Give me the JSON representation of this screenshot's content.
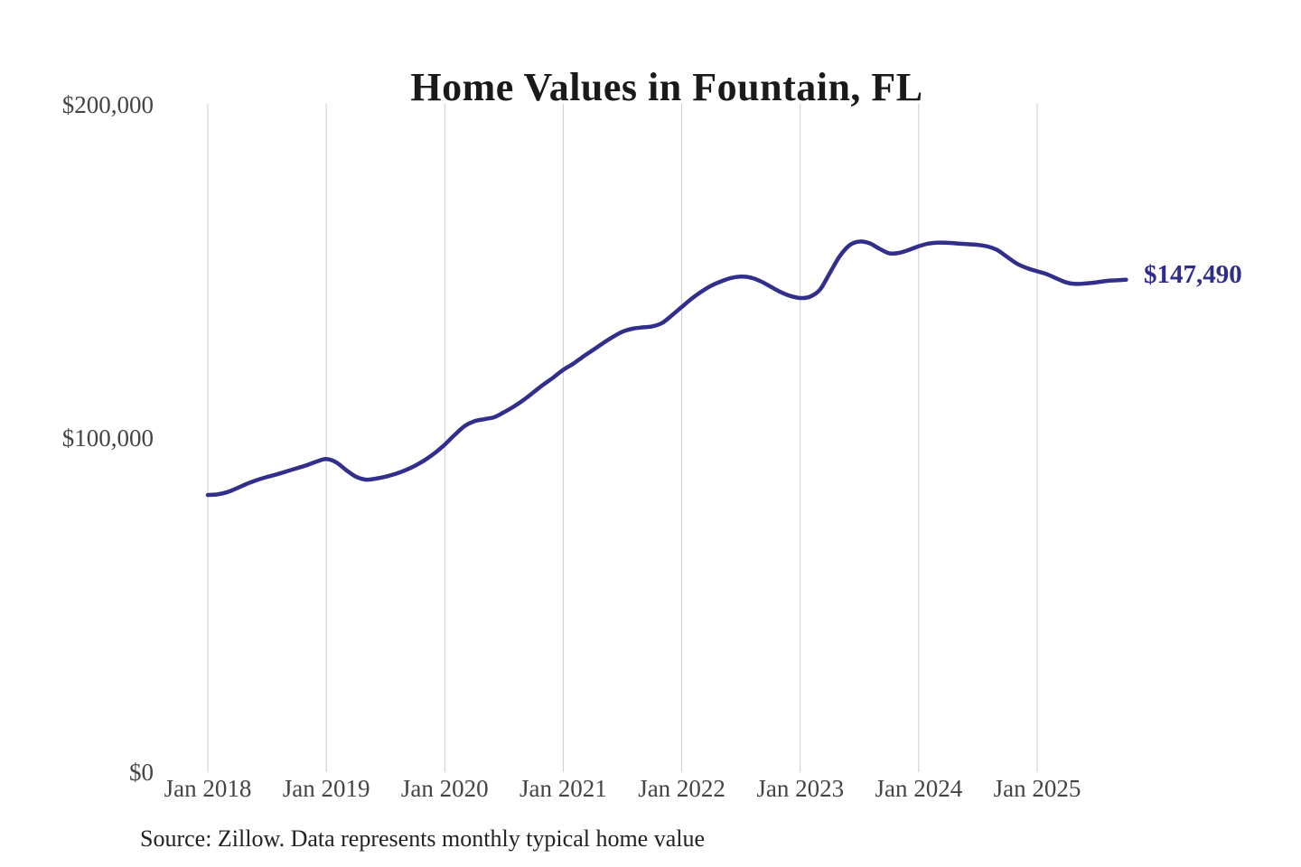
{
  "title": "Home Values in Fountain, FL",
  "source_note": "Source: Zillow. Data represents monthly typical home value",
  "colors": {
    "line": "#322e8c",
    "end_label": "#2f2d8a",
    "grid": "#cccccc",
    "title_text": "#1a1a1a",
    "axis_text": "#444444",
    "source_text": "#222222",
    "background": "#ffffff"
  },
  "chart_data": {
    "type": "line",
    "title": "Home Values in Fountain, FL",
    "series_name": "Monthly typical home value",
    "frequency": "monthly",
    "x_start": "2018-01",
    "x_end": "2025-10",
    "values": [
      83000,
      83200,
      83900,
      85100,
      86400,
      87500,
      88400,
      89200,
      90100,
      91000,
      91900,
      93000,
      93800,
      92800,
      90500,
      88500,
      87600,
      87900,
      88500,
      89300,
      90400,
      91800,
      93500,
      95600,
      98100,
      101000,
      103600,
      105100,
      105700,
      106300,
      107800,
      109500,
      111500,
      113800,
      116100,
      118200,
      120500,
      122300,
      124400,
      126400,
      128400,
      130300,
      131900,
      132800,
      133200,
      133500,
      134500,
      136800,
      139300,
      141800,
      143900,
      145700,
      147000,
      148000,
      148400,
      148100,
      147000,
      145400,
      143800,
      142600,
      142000,
      142400,
      144500,
      149500,
      154500,
      157800,
      158900,
      158400,
      156800,
      155400,
      155500,
      156400,
      157500,
      158300,
      158600,
      158500,
      158300,
      158100,
      157900,
      157400,
      156300,
      154200,
      152200,
      150900,
      150000,
      149100,
      147800,
      146600,
      146200,
      146400,
      146700,
      147100,
      147300,
      147490
    ],
    "last_value": 147490,
    "last_value_label": "$147,490",
    "x_tick_labels": [
      "Jan 2018",
      "Jan 2019",
      "Jan 2020",
      "Jan 2021",
      "Jan 2022",
      "Jan 2023",
      "Jan 2024",
      "Jan 2025"
    ],
    "y_tick_labels": [
      "$0",
      "$100,000",
      "$200,000"
    ],
    "y_tick_values": [
      0,
      100000,
      200000
    ],
    "ylim": [
      0,
      200000
    ],
    "grid": "vertical-only",
    "legend": "none"
  }
}
